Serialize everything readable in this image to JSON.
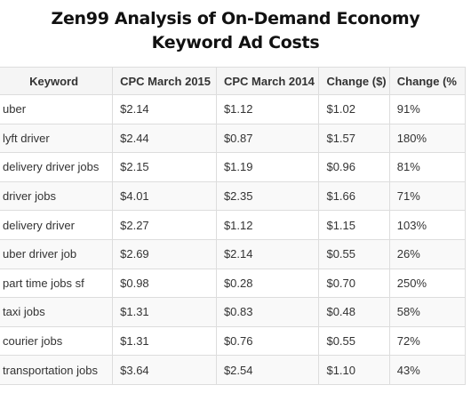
{
  "title": {
    "line1": "Zen99 Analysis of On-Demand Economy",
    "line2": "Keyword Ad Costs"
  },
  "table": {
    "headers": [
      "Keyword",
      "CPC March 2015",
      "CPC March 2014",
      "Change ($)",
      "Change (%"
    ],
    "rows": [
      [
        "uber",
        "$2.14",
        "$1.12",
        "$1.02",
        "91%"
      ],
      [
        "lyft driver",
        "$2.44",
        "$0.87",
        "$1.57",
        "180%"
      ],
      [
        "delivery driver jobs",
        "$2.15",
        "$1.19",
        "$0.96",
        "81%"
      ],
      [
        "driver jobs",
        "$4.01",
        "$2.35",
        "$1.66",
        "71%"
      ],
      [
        "delivery driver",
        "$2.27",
        "$1.12",
        "$1.15",
        "103%"
      ],
      [
        "uber driver job",
        "$2.69",
        "$2.14",
        "$0.55",
        "26%"
      ],
      [
        "part time jobs sf",
        "$0.98",
        "$0.28",
        "$0.70",
        "250%"
      ],
      [
        "taxi jobs",
        "$1.31",
        "$0.83",
        "$0.48",
        "58%"
      ],
      [
        "courier jobs",
        "$1.31",
        "$0.76",
        "$0.55",
        "72%"
      ],
      [
        "transportation jobs",
        "$3.64",
        "$2.54",
        "$1.10",
        "43%"
      ]
    ]
  },
  "colors": {
    "header_bg": "#f5f5f5",
    "border": "#dddddd",
    "text": "#333333"
  }
}
